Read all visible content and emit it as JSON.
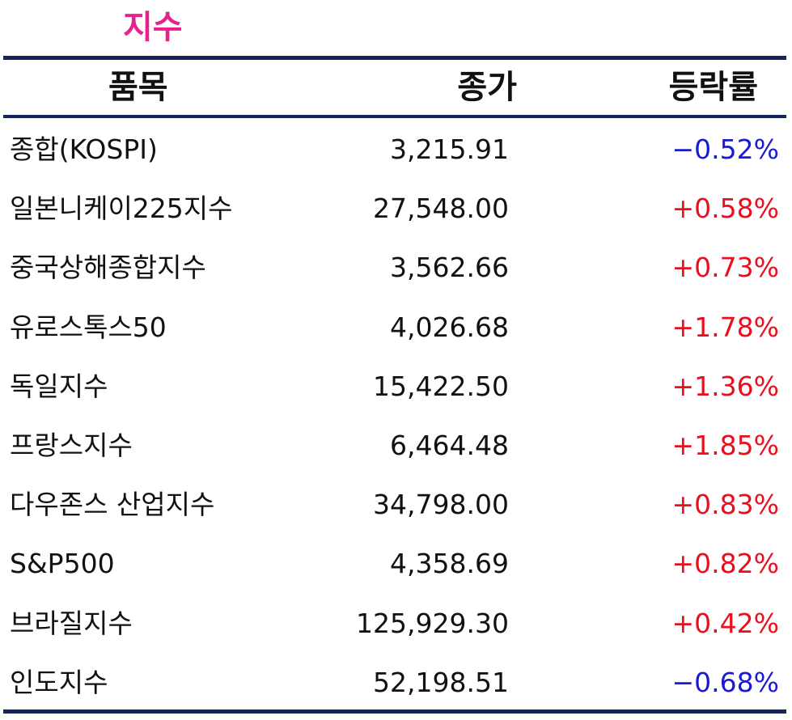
{
  "title": "지수",
  "header": {
    "name": "품목",
    "close": "종가",
    "change": "등락률"
  },
  "rows": [
    {
      "name": "종합(KOSPI)",
      "close": "3,215.91",
      "change": "−0.52%",
      "direction": "down"
    },
    {
      "name": "일본니케이225지수",
      "close": "27,548.00",
      "change": "+0.58%",
      "direction": "up"
    },
    {
      "name": "중국상해종합지수",
      "close": "3,562.66",
      "change": "+0.73%",
      "direction": "up"
    },
    {
      "name": "유로스톡스50",
      "close": "4,026.68",
      "change": "+1.78%",
      "direction": "up"
    },
    {
      "name": "독일지수",
      "close": "15,422.50",
      "change": "+1.36%",
      "direction": "up"
    },
    {
      "name": "프랑스지수",
      "close": "6,464.48",
      "change": "+1.85%",
      "direction": "up"
    },
    {
      "name": "다우존스 산업지수",
      "close": "34,798.00",
      "change": "+0.83%",
      "direction": "up"
    },
    {
      "name": "S&P500",
      "close": "4,358.69",
      "change": "+0.82%",
      "direction": "up"
    },
    {
      "name": "브라질지수",
      "close": "125,929.30",
      "change": "+0.42%",
      "direction": "up"
    },
    {
      "name": "인도지수",
      "close": "52,198.51",
      "change": "−0.68%",
      "direction": "down"
    }
  ],
  "colors": {
    "title": "#e6238c",
    "rule": "#13235b",
    "up": "#e8101e",
    "down": "#1a1ad6"
  }
}
